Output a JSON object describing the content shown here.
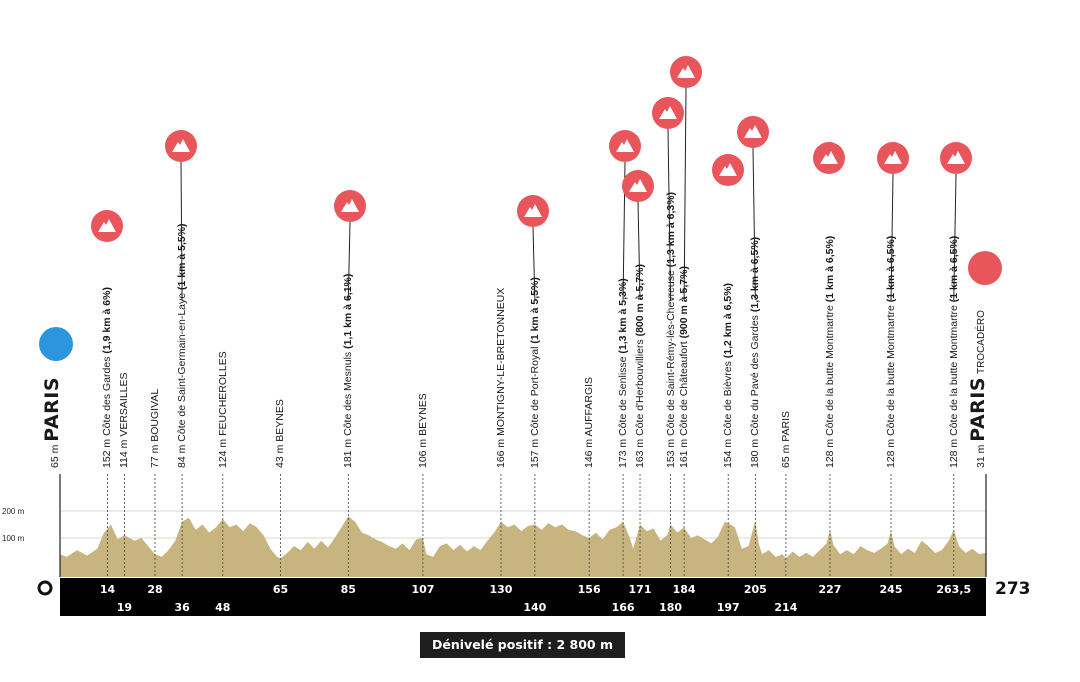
{
  "total_km": "273",
  "start_km": "0",
  "y_axis": [
    "200 m",
    "100 m"
  ],
  "footer": "Dénivelé positif : 2 800 m",
  "colors": {
    "climb": "#e8565c",
    "start": "#2b96dc",
    "finish": "#e8565c",
    "terrain": "#c8b47f",
    "bar": "#000000"
  },
  "start_marker": {
    "km": 0,
    "label": {
      "alt": "65 m",
      "name": "PARIS"
    }
  },
  "finish_marker": {
    "km": 273,
    "label": {
      "alt": "31 m",
      "name": "PARIS",
      "sub": "TROCADÉRO"
    }
  },
  "waypoints": [
    {
      "km": 14,
      "label": {
        "alt": "152 m",
        "name": "Côte des Gardes",
        "detail": "(1,9 km à 6%)"
      },
      "climb": true
    },
    {
      "km": 19,
      "label": {
        "alt": "114 m",
        "name": "VERSAILLES",
        "detail": ""
      },
      "climb": false
    },
    {
      "km": 28,
      "label": {
        "alt": "77 m",
        "name": "BOUGIVAL",
        "detail": ""
      },
      "climb": false
    },
    {
      "km": 36,
      "label": {
        "alt": "84 m",
        "name": "Côte de Saint-Germain-en-Laye",
        "detail": "(1 km à 5,5%)"
      },
      "climb": true
    },
    {
      "km": 48,
      "label": {
        "alt": "124 m",
        "name": "FEUCHEROLLES",
        "detail": ""
      },
      "climb": false
    },
    {
      "km": 65,
      "label": {
        "alt": "43 m",
        "name": "BEYNES",
        "detail": ""
      },
      "climb": false
    },
    {
      "km": 85,
      "label": {
        "alt": "181 m",
        "name": "Côte des Mesnuls",
        "detail": "(1,1 km à 6,1%)"
      },
      "climb": true
    },
    {
      "km": 107,
      "label": {
        "alt": "106 m",
        "name": "BEYNES",
        "detail": ""
      },
      "climb": false
    },
    {
      "km": 130,
      "label": {
        "alt": "166 m",
        "name": "MONTIGNY-LE-BRETONNEUX",
        "detail": ""
      },
      "climb": false
    },
    {
      "km": 140,
      "label": {
        "alt": "157 m",
        "name": "Côte de Port-Royal",
        "detail": "(1 km à 5,5%)"
      },
      "climb": true
    },
    {
      "km": 156,
      "label": {
        "alt": "146 m",
        "name": "AUFFARGIS",
        "detail": ""
      },
      "climb": false
    },
    {
      "km": 166,
      "label": {
        "alt": "173 m",
        "name": "Côte de Senlisse",
        "detail": "(1,3 km à 5,3%)"
      },
      "climb": true
    },
    {
      "km": 171,
      "label": {
        "alt": "163 m",
        "name": "Côte d'Herbouvilliers",
        "detail": "(800 m à 5,7%)"
      },
      "climb": true
    },
    {
      "km": 180,
      "label": {
        "alt": "153 m",
        "name": "Côte de Saint-Rémy-lès-Chevreuse",
        "detail": "(1,3 km à 6,3%)"
      },
      "climb": true
    },
    {
      "km": 184,
      "label": {
        "alt": "161 m",
        "name": "Côte de Châteaufort",
        "detail": "(900 m à 5,7%)"
      },
      "climb": true
    },
    {
      "km": 197,
      "label": {
        "alt": "154 m",
        "name": "Côte de Bièvres",
        "detail": "(1,2 km à 6,5%)"
      },
      "climb": true
    },
    {
      "km": 205,
      "label": {
        "alt": "180 m",
        "name": "Côte du Pavé des Gardes",
        "detail": "(1,3 km à 6,5%)"
      },
      "climb": true
    },
    {
      "km": 214,
      "label": {
        "alt": "65 m",
        "name": "PARIS",
        "detail": ""
      },
      "climb": false
    },
    {
      "km": 227,
      "label": {
        "alt": "128 m",
        "name": "Côte de la butte Montmartre",
        "detail": "(1 km à 6,5%)"
      },
      "climb": true
    },
    {
      "km": 245,
      "label": {
        "alt": "128 m",
        "name": "Côte de la butte Montmartre",
        "detail": "(1 km à 6,5%)"
      },
      "climb": true
    },
    {
      "km": 263.5,
      "label": {
        "alt": "128 m",
        "name": "Côte de la butte Montmartre",
        "detail": "(1 km à 6,5%)"
      },
      "climb": true
    }
  ],
  "km_ticks": [
    {
      "km": 14,
      "text": "14",
      "row": "upper"
    },
    {
      "km": 19,
      "text": "19",
      "row": "lower"
    },
    {
      "km": 28,
      "text": "28",
      "row": "upper"
    },
    {
      "km": 36,
      "text": "36",
      "row": "lower"
    },
    {
      "km": 48,
      "text": "48",
      "row": "lower"
    },
    {
      "km": 65,
      "text": "65",
      "row": "upper"
    },
    {
      "km": 85,
      "text": "85",
      "row": "upper"
    },
    {
      "km": 107,
      "text": "107",
      "row": "upper"
    },
    {
      "km": 130,
      "text": "130",
      "row": "upper"
    },
    {
      "km": 140,
      "text": "140",
      "row": "lower"
    },
    {
      "km": 156,
      "text": "156",
      "row": "upper"
    },
    {
      "km": 166,
      "text": "166",
      "row": "lower"
    },
    {
      "km": 171,
      "text": "171",
      "row": "upper"
    },
    {
      "km": 180,
      "text": "180",
      "row": "lower"
    },
    {
      "km": 184,
      "text": "184",
      "row": "upper"
    },
    {
      "km": 197,
      "text": "197",
      "row": "lower"
    },
    {
      "km": 205,
      "text": "205",
      "row": "upper"
    },
    {
      "km": 214,
      "text": "214",
      "row": "lower"
    },
    {
      "km": 227,
      "text": "227",
      "row": "upper"
    },
    {
      "km": 245,
      "text": "245",
      "row": "upper"
    },
    {
      "km": 263.5,
      "text": "263,5",
      "row": "upper"
    }
  ]
}
